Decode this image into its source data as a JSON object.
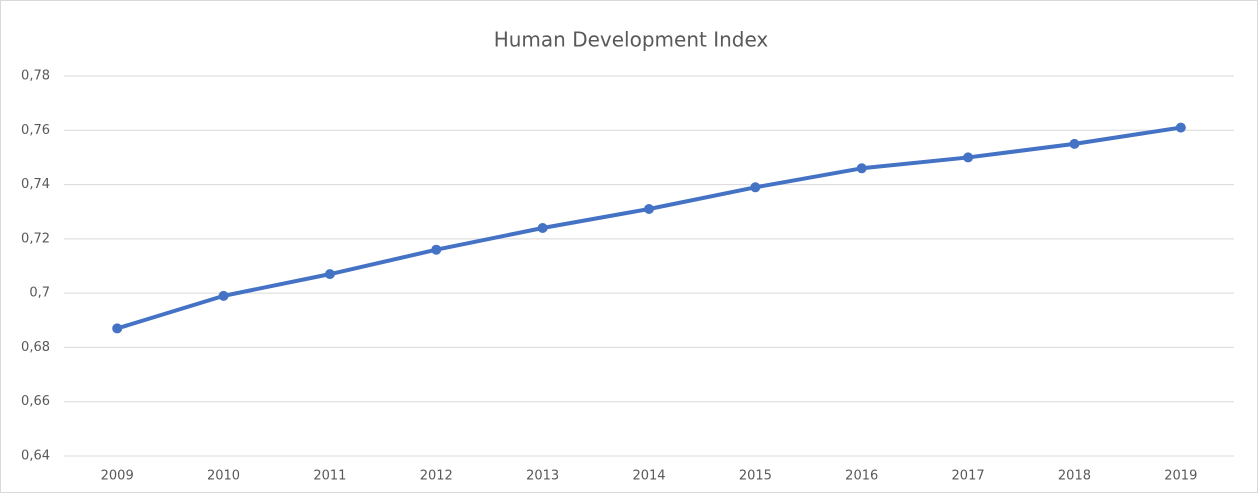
{
  "chart_data": {
    "type": "line",
    "title": "Human Development Index",
    "categories": [
      "2009",
      "2010",
      "2011",
      "2012",
      "2013",
      "2014",
      "2015",
      "2016",
      "2017",
      "2018",
      "2019"
    ],
    "values": [
      0.687,
      0.699,
      0.707,
      0.716,
      0.724,
      0.731,
      0.739,
      0.746,
      0.75,
      0.755,
      0.761
    ],
    "color": "#4472c4",
    "ylim": [
      0.64,
      0.78
    ],
    "yticks": [
      {
        "value": 0.64,
        "label": "0,64"
      },
      {
        "value": 0.66,
        "label": "0,66"
      },
      {
        "value": 0.68,
        "label": "0,68"
      },
      {
        "value": 0.7,
        "label": "0,7"
      },
      {
        "value": 0.72,
        "label": "0,72"
      },
      {
        "value": 0.74,
        "label": "0,74"
      },
      {
        "value": 0.76,
        "label": "0,76"
      },
      {
        "value": 0.78,
        "label": "0,78"
      }
    ],
    "grid": true
  }
}
